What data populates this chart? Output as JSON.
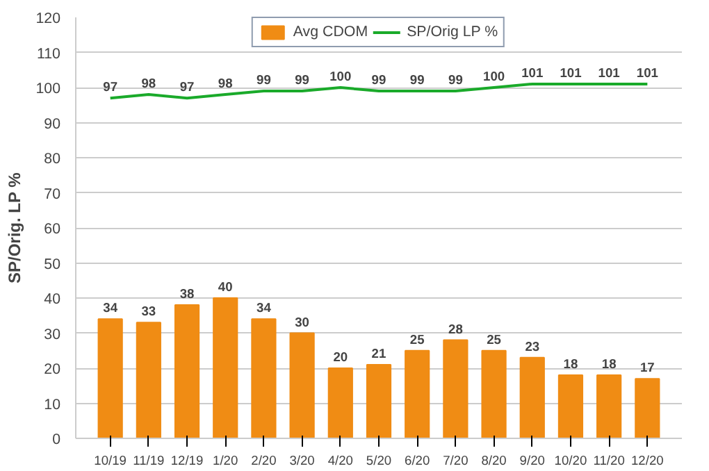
{
  "chart_data": {
    "type": "bar",
    "ylabel": "SP/Orig. LP %",
    "categories": [
      "10/19",
      "11/19",
      "12/19",
      "1/20",
      "2/20",
      "3/20",
      "4/20",
      "5/20",
      "6/20",
      "7/20",
      "8/20",
      "9/20",
      "10/20",
      "11/20",
      "12/20"
    ],
    "series": [
      {
        "name": "Avg CDOM",
        "color": "#f08c14",
        "values": [
          34,
          33,
          38,
          40,
          34,
          30,
          20,
          21,
          25,
          28,
          25,
          23,
          18,
          18,
          17
        ]
      },
      {
        "name": "SP/Orig LP %",
        "type": "line",
        "color": "#1aaa2a",
        "values": [
          97,
          98,
          97,
          98,
          99,
          99,
          100,
          99,
          99,
          99,
          100,
          101,
          101,
          101,
          101
        ]
      }
    ],
    "ylim": [
      0,
      120
    ],
    "yticks": [
      0,
      10,
      20,
      30,
      40,
      50,
      60,
      70,
      80,
      90,
      100,
      110,
      120
    ],
    "grid": "y",
    "legend": "top",
    "data_labels": true,
    "marker": "none"
  }
}
